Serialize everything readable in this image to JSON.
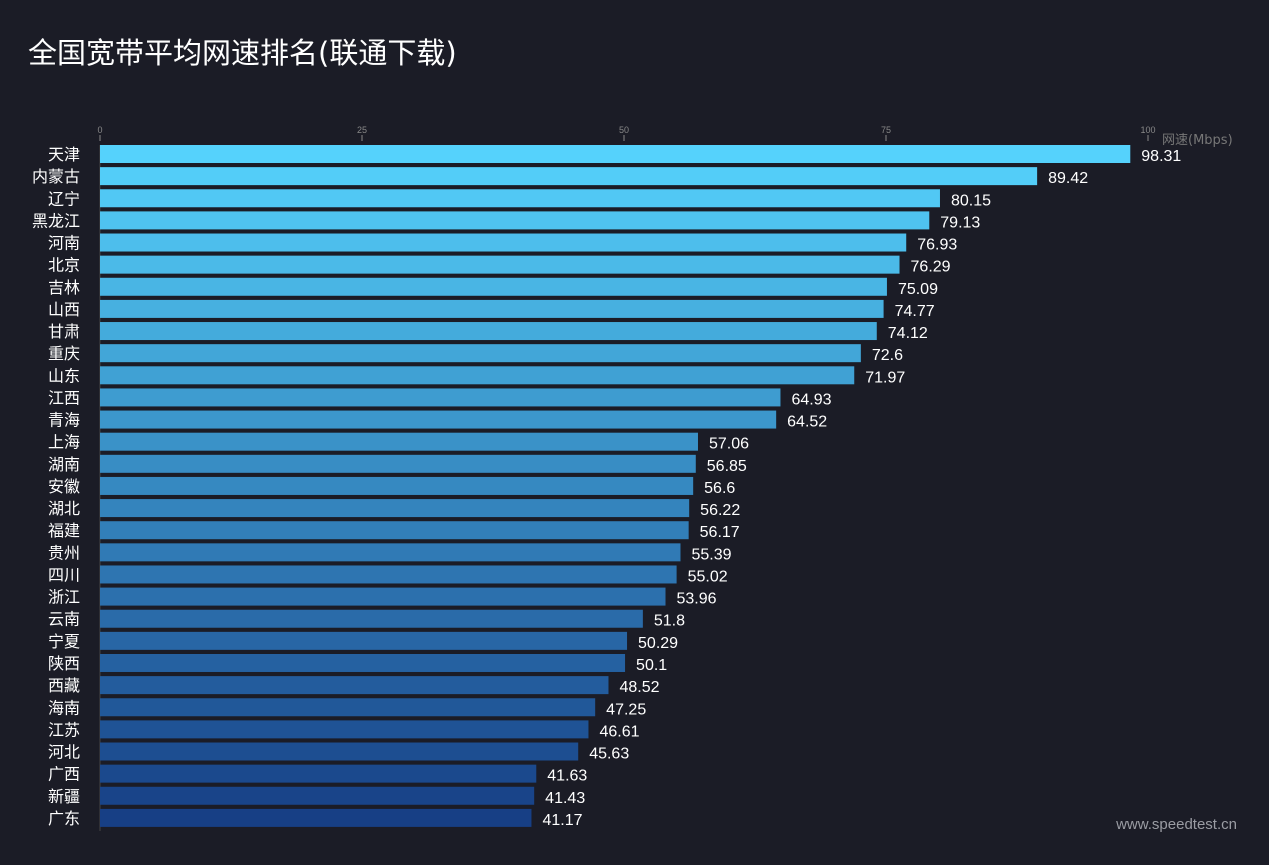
{
  "chart_data": {
    "type": "bar",
    "orientation": "horizontal",
    "title": "全国宽带平均网速排名(联通下载)",
    "xlabel": "网速(Mbps)",
    "xlim": [
      0,
      100
    ],
    "xticks": [
      "0",
      "25",
      "50",
      "75",
      "100"
    ],
    "grid": false,
    "categories": [
      "天津",
      "内蒙古",
      "辽宁",
      "黑龙江",
      "河南",
      "北京",
      "吉林",
      "山西",
      "甘肃",
      "重庆",
      "山东",
      "江西",
      "青海",
      "上海",
      "湖南",
      "安徽",
      "湖北",
      "福建",
      "贵州",
      "四川",
      "浙江",
      "云南",
      "宁夏",
      "陕西",
      "西藏",
      "海南",
      "江苏",
      "河北",
      "广西",
      "新疆",
      "广东"
    ],
    "values": [
      98.31,
      89.42,
      80.15,
      79.13,
      76.93,
      76.29,
      75.09,
      74.77,
      74.12,
      72.6,
      71.97,
      64.93,
      64.52,
      57.06,
      56.85,
      56.6,
      56.22,
      56.17,
      55.39,
      55.02,
      53.96,
      51.8,
      50.29,
      50.1,
      48.52,
      47.25,
      46.61,
      45.63,
      41.63,
      41.43,
      41.17
    ],
    "value_labels": [
      "98.31",
      "89.42",
      "80.15",
      "79.13",
      "76.93",
      "76.29",
      "75.09",
      "74.77",
      "74.12",
      "72.6",
      "71.97",
      "64.93",
      "64.52",
      "57.06",
      "56.85",
      "56.6",
      "56.22",
      "56.17",
      "55.39",
      "55.02",
      "53.96",
      "51.8",
      "50.29",
      "50.1",
      "48.52",
      "47.25",
      "46.61",
      "45.63",
      "41.63",
      "41.43",
      "41.17"
    ],
    "colors": {
      "top": "#55d2fc",
      "bottom": "#173f85",
      "background": "#1b1c26"
    }
  },
  "watermark": "www.speedtest.cn"
}
